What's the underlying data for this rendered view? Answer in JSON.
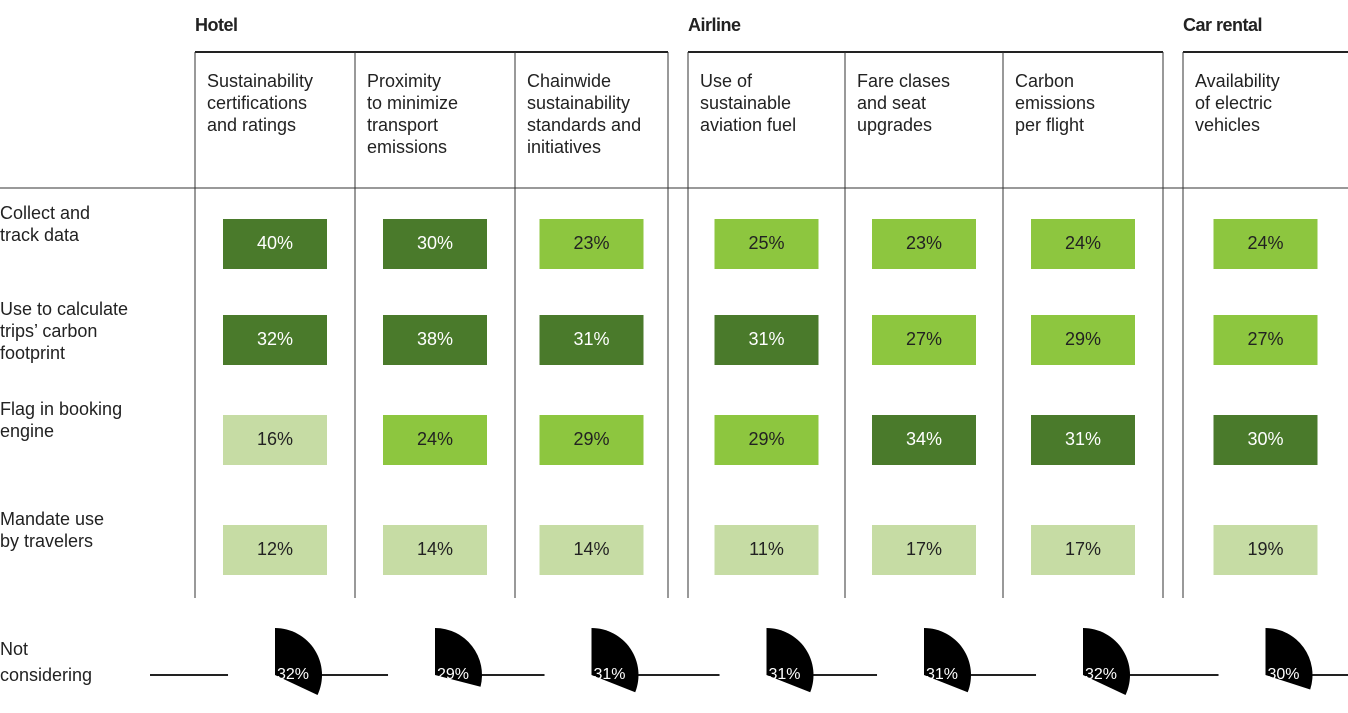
{
  "groups": [
    {
      "title": "Hotel",
      "columns": [
        {
          "label": [
            "Sustainability",
            "certifications",
            "and ratings"
          ]
        },
        {
          "label": [
            "Proximity",
            "to minimize",
            "transport",
            "emissions"
          ]
        },
        {
          "label": [
            "Chainwide",
            "sustainability",
            "standards and",
            "initiatives"
          ]
        }
      ]
    },
    {
      "title": "Airline",
      "columns": [
        {
          "label": [
            "Use of",
            "sustainable",
            "aviation fuel"
          ]
        },
        {
          "label": [
            "Fare clases",
            "and seat",
            "upgrades"
          ]
        },
        {
          "label": [
            "Carbon",
            "emissions",
            "per flight"
          ]
        }
      ]
    },
    {
      "title": "Car rental",
      "columns": [
        {
          "label": [
            "Availability",
            "of electric",
            "vehicles"
          ]
        }
      ]
    }
  ],
  "palette": {
    "dark": "#4a7a2b",
    "bright": "#8dc63f",
    "pale": "#c6dca4"
  },
  "rows": [
    {
      "label": [
        "Collect and",
        "track data"
      ],
      "cells": [
        {
          "text": "40%",
          "shade": "dark"
        },
        {
          "text": "30%",
          "shade": "dark"
        },
        {
          "text": "23%",
          "shade": "bright"
        },
        {
          "text": "25%",
          "shade": "bright"
        },
        {
          "text": "23%",
          "shade": "bright"
        },
        {
          "text": "24%",
          "shade": "bright"
        },
        {
          "text": "24%",
          "shade": "bright"
        }
      ]
    },
    {
      "label": [
        "Use to calculate",
        "trips’ carbon",
        "footprint"
      ],
      "cells": [
        {
          "text": "32%",
          "shade": "dark"
        },
        {
          "text": "38%",
          "shade": "dark"
        },
        {
          "text": "31%",
          "shade": "dark"
        },
        {
          "text": "31%",
          "shade": "dark"
        },
        {
          "text": "27%",
          "shade": "bright"
        },
        {
          "text": "29%",
          "shade": "bright"
        },
        {
          "text": "27%",
          "shade": "bright"
        }
      ]
    },
    {
      "label": [
        "Flag in booking",
        "engine"
      ],
      "cells": [
        {
          "text": "16%",
          "shade": "pale"
        },
        {
          "text": "24%",
          "shade": "bright"
        },
        {
          "text": "29%",
          "shade": "bright"
        },
        {
          "text": "29%",
          "shade": "bright"
        },
        {
          "text": "34%",
          "shade": "dark"
        },
        {
          "text": "31%",
          "shade": "dark"
        },
        {
          "text": "30%",
          "shade": "dark"
        }
      ]
    },
    {
      "label": [
        "Mandate use",
        "by travelers"
      ],
      "cells": [
        {
          "text": "12%",
          "shade": "pale"
        },
        {
          "text": "14%",
          "shade": "pale"
        },
        {
          "text": "14%",
          "shade": "pale"
        },
        {
          "text": "11%",
          "shade": "pale"
        },
        {
          "text": "17%",
          "shade": "pale"
        },
        {
          "text": "17%",
          "shade": "pale"
        },
        {
          "text": "19%",
          "shade": "pale"
        }
      ]
    }
  ],
  "not_considering": {
    "label": [
      "Not",
      "considering"
    ],
    "values": [
      32,
      29,
      31,
      31,
      31,
      32,
      30
    ],
    "value_labels": [
      "32%",
      "29%",
      "31%",
      "31%",
      "31%",
      "32%",
      "30%"
    ]
  }
}
